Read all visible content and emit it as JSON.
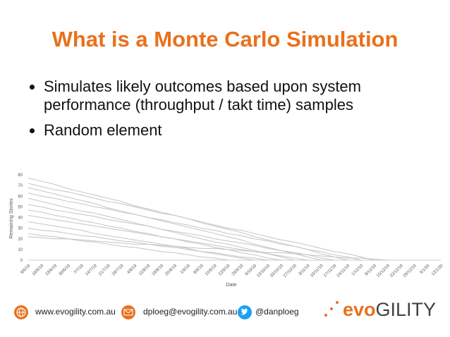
{
  "header": {
    "title": "What is a Monte Carlo Simulation"
  },
  "bullets": [
    "Simulates likely outcomes based upon system performance (throughput / takt time) samples",
    "Random element"
  ],
  "chart_data": {
    "type": "line",
    "x_label": "Date",
    "y_label": "Remaining Stories",
    "color": "#c4c4c4",
    "categories": [
      "9/6/19",
      "16/6/19",
      "23/6/19",
      "30/6/19",
      "7/7/19",
      "14/7/19",
      "21/7/19",
      "28/7/19",
      "4/8/19",
      "11/8/19",
      "18/8/19",
      "25/8/19",
      "1/9/19",
      "8/9/19",
      "15/9/19",
      "22/9/19",
      "29/9/19",
      "6/10/19",
      "13/10/19",
      "20/10/19",
      "27/10/19",
      "3/11/19",
      "10/11/19",
      "17/11/19",
      "24/11/19",
      "1/12/19",
      "8/12/19",
      "15/12/19",
      "22/12/19",
      "29/12/19",
      "5/1/20",
      "12/1/20"
    ],
    "ylim": [
      0,
      80
    ],
    "yticks": [
      0,
      10,
      20,
      30,
      40,
      50,
      60,
      70,
      80
    ],
    "series": [
      {
        "values": [
          77,
          74,
          71,
          67,
          64,
          61,
          58,
          55,
          51,
          48,
          45,
          42,
          39,
          35,
          32,
          29,
          26,
          22,
          19,
          16,
          13,
          10,
          6,
          3,
          0,
          null,
          null,
          null,
          null,
          null,
          null,
          null
        ]
      },
      {
        "values": [
          72,
          69,
          66,
          64,
          61,
          58,
          55,
          53,
          50,
          47,
          44,
          42,
          39,
          36,
          33,
          30,
          28,
          25,
          22,
          19,
          17,
          14,
          11,
          8,
          6,
          3,
          0,
          null,
          null,
          null,
          null,
          null
        ]
      },
      {
        "values": [
          68,
          65,
          62,
          59,
          56,
          53,
          49,
          46,
          43,
          40,
          37,
          34,
          31,
          28,
          25,
          22,
          19,
          15,
          12,
          9,
          6,
          3,
          0,
          null,
          null,
          null,
          null,
          null,
          null,
          null,
          null,
          null
        ]
      },
      {
        "values": [
          63,
          60,
          58,
          55,
          53,
          50,
          48,
          45,
          43,
          40,
          38,
          35,
          33,
          30,
          28,
          25,
          23,
          20,
          18,
          15,
          13,
          10,
          8,
          5,
          3,
          0,
          null,
          null,
          null,
          null,
          null,
          null
        ]
      },
      {
        "values": [
          58,
          55,
          52,
          49,
          46,
          44,
          41,
          38,
          35,
          32,
          29,
          26,
          23,
          20,
          17,
          15,
          12,
          9,
          6,
          3,
          0,
          null,
          null,
          null,
          null,
          null,
          null,
          null,
          null,
          null,
          null,
          null
        ]
      },
      {
        "values": [
          52,
          50,
          47,
          45,
          43,
          41,
          38,
          36,
          34,
          32,
          29,
          27,
          25,
          23,
          20,
          18,
          16,
          14,
          11,
          9,
          7,
          5,
          2,
          0,
          null,
          null,
          null,
          null,
          null,
          null,
          null,
          null
        ]
      },
      {
        "values": [
          47,
          45,
          42,
          40,
          37,
          35,
          32,
          30,
          27,
          25,
          22,
          20,
          17,
          15,
          12,
          10,
          7,
          5,
          2,
          0,
          null,
          null,
          null,
          null,
          null,
          null,
          null,
          null,
          null,
          null,
          null,
          null
        ]
      },
      {
        "values": [
          42,
          40,
          38,
          36,
          34,
          32,
          30,
          28,
          26,
          24,
          22,
          20,
          18,
          16,
          14,
          12,
          10,
          8,
          6,
          4,
          2,
          0,
          null,
          null,
          null,
          null,
          null,
          null,
          null,
          null,
          null,
          null
        ]
      },
      {
        "values": [
          36,
          34,
          32,
          30,
          28,
          25,
          23,
          21,
          19,
          17,
          15,
          13,
          11,
          8,
          6,
          4,
          2,
          0,
          null,
          null,
          null,
          null,
          null,
          null,
          null,
          null,
          null,
          null,
          null,
          null,
          null,
          null
        ]
      },
      {
        "values": [
          30,
          28,
          27,
          25,
          23,
          22,
          20,
          18,
          17,
          15,
          13,
          12,
          10,
          8,
          7,
          5,
          3,
          2,
          0,
          null,
          null,
          null,
          null,
          null,
          null,
          null,
          null,
          null,
          null,
          null,
          null,
          null
        ]
      },
      {
        "values": [
          25,
          23,
          22,
          20,
          18,
          17,
          15,
          13,
          12,
          10,
          8,
          7,
          5,
          3,
          2,
          0,
          null,
          null,
          null,
          null,
          null,
          null,
          null,
          null,
          null,
          null,
          null,
          null,
          null,
          null,
          null,
          null
        ]
      },
      {
        "values": [
          22,
          21,
          20,
          20,
          19,
          18,
          17,
          16,
          15,
          15,
          14,
          13,
          12,
          11,
          11,
          10,
          9,
          8,
          7,
          7,
          6,
          5,
          4,
          3,
          2,
          2,
          1,
          0,
          null,
          null,
          null,
          null
        ]
      }
    ]
  },
  "footer": {
    "website": "www.evogility.com.au",
    "email": "dploeg@evogility.com.au",
    "twitter": "@danploeg"
  },
  "logo": {
    "prefix": "evo",
    "suffix": "GILITY"
  }
}
